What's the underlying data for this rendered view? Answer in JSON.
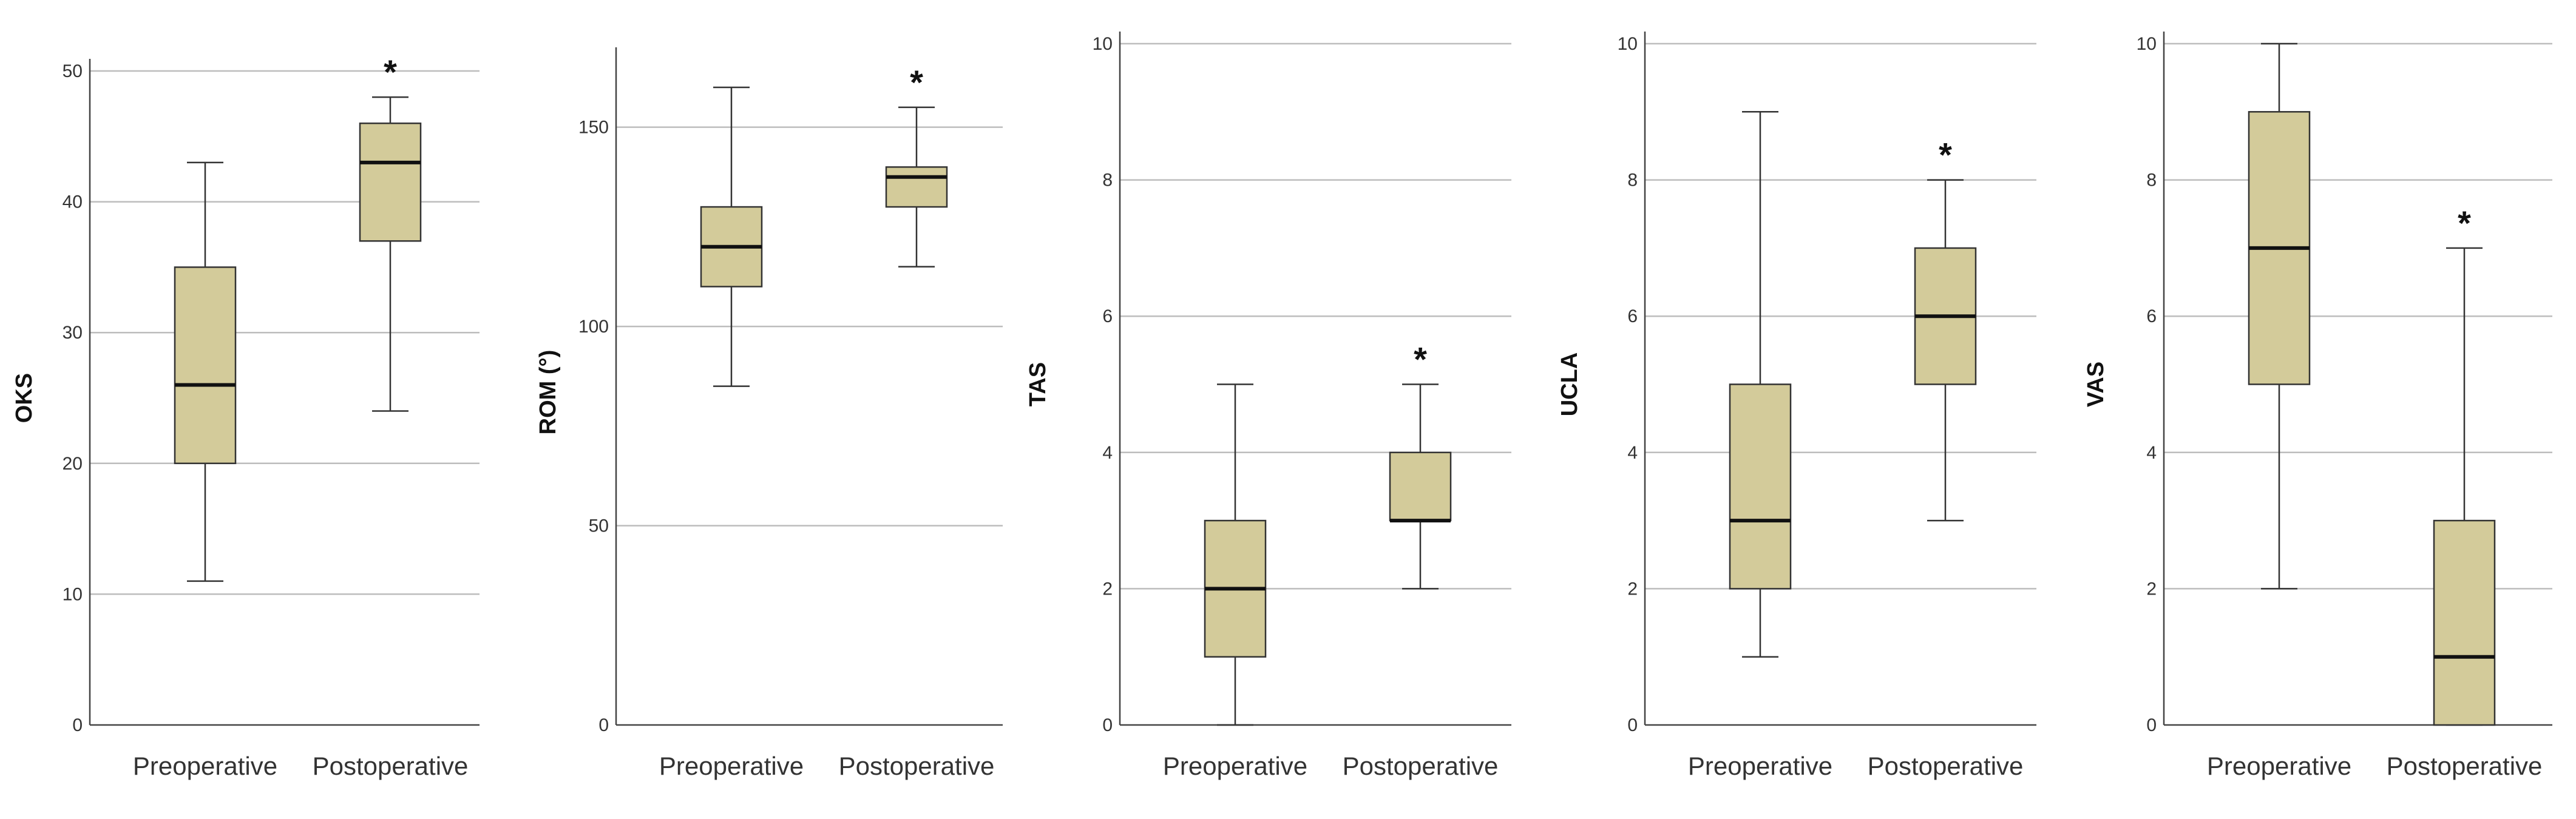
{
  "chart_data": [
    {
      "type": "box",
      "ylabel": "OKS",
      "ylim": [
        0,
        50
      ],
      "yticks": [
        0,
        10,
        20,
        30,
        40,
        50
      ],
      "categories": [
        "Preoperative",
        "Postoperative"
      ],
      "boxes": [
        {
          "min": 11,
          "q1": 20,
          "median": 26,
          "q3": 35,
          "max": 43,
          "significant": false
        },
        {
          "min": 24,
          "q1": 37,
          "median": 43,
          "q3": 46,
          "max": 48,
          "significant": true
        }
      ],
      "significance_marker": "*"
    },
    {
      "type": "box",
      "ylabel": "ROM (°)",
      "ylim": [
        0,
        167
      ],
      "yticks": [
        0,
        50,
        100,
        150
      ],
      "categories": [
        "Preoperative",
        "Postoperative"
      ],
      "boxes": [
        {
          "min": 85,
          "q1": 110,
          "median": 120,
          "q3": 130,
          "max": 160,
          "significant": false
        },
        {
          "min": 115,
          "q1": 130,
          "median": 137.5,
          "q3": 140,
          "max": 155,
          "significant": true
        }
      ],
      "significance_marker": "*"
    },
    {
      "type": "box",
      "ylabel": "TAS",
      "ylim": [
        0,
        10
      ],
      "yticks": [
        0,
        2,
        4,
        6,
        8,
        10
      ],
      "categories": [
        "Preoperative",
        "Postoperative"
      ],
      "boxes": [
        {
          "min": 0,
          "q1": 1,
          "median": 2,
          "q3": 3,
          "max": 5,
          "significant": false
        },
        {
          "min": 2,
          "q1": 3,
          "median": 3,
          "q3": 4,
          "max": 5,
          "significant": true
        }
      ],
      "significance_marker": "*"
    },
    {
      "type": "box",
      "ylabel": "UCLA",
      "ylim": [
        0,
        10
      ],
      "yticks": [
        0,
        2,
        4,
        6,
        8,
        10
      ],
      "categories": [
        "Preoperative",
        "Postoperative"
      ],
      "boxes": [
        {
          "min": 1,
          "q1": 2,
          "median": 3,
          "q3": 5,
          "max": 9,
          "significant": false
        },
        {
          "min": 3,
          "q1": 5,
          "median": 6,
          "q3": 7,
          "max": 8,
          "significant": true
        }
      ],
      "significance_marker": "*"
    },
    {
      "type": "box",
      "ylabel": "VAS",
      "ylim": [
        0,
        10
      ],
      "yticks": [
        0,
        2,
        4,
        6,
        8,
        10
      ],
      "categories": [
        "Preoperative",
        "Postoperative"
      ],
      "boxes": [
        {
          "min": 2,
          "q1": 5,
          "median": 7,
          "q3": 9,
          "max": 10,
          "significant": false
        },
        {
          "min": 0,
          "q1": 0,
          "median": 1,
          "q3": 3,
          "max": 7,
          "significant": true
        }
      ],
      "significance_marker": "*"
    }
  ],
  "style": {
    "box_fill": "#D3CB9A",
    "box_stroke": "#333333",
    "median_stroke": "#111111",
    "grid_color": "#BDBDBD",
    "axis_color": "#444444"
  }
}
